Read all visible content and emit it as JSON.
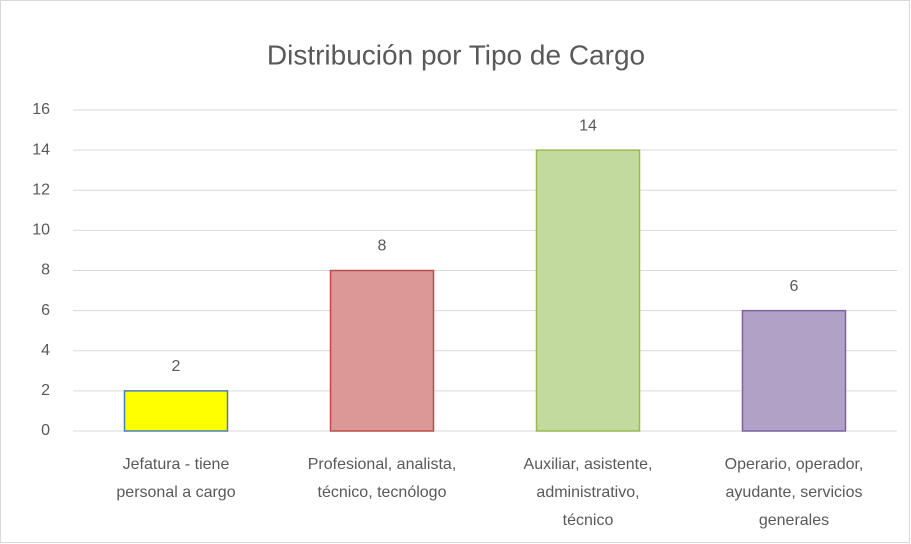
{
  "chart_data": {
    "type": "bar",
    "title": "Distribución por Tipo de Cargo",
    "categories": [
      [
        "Jefatura - tiene",
        "personal a cargo"
      ],
      [
        "Profesional, analista,",
        "técnico, tecnólogo"
      ],
      [
        "Auxiliar, asistente,",
        "administrativo,",
        "técnico"
      ],
      [
        "Operario, operador,",
        "ayudante, servicios",
        "generales"
      ]
    ],
    "values": [
      2,
      8,
      14,
      6
    ],
    "colors": [
      "#ffff00",
      "#dc9896",
      "#c2da9e",
      "#afa2c6"
    ],
    "edge_colors": [
      "#4a7ebb",
      "#be4b48",
      "#98b954",
      "#7d60a0"
    ],
    "ylim": [
      0,
      16
    ],
    "yticks": [
      0,
      2,
      4,
      6,
      8,
      10,
      12,
      14,
      16
    ],
    "grid": true
  }
}
